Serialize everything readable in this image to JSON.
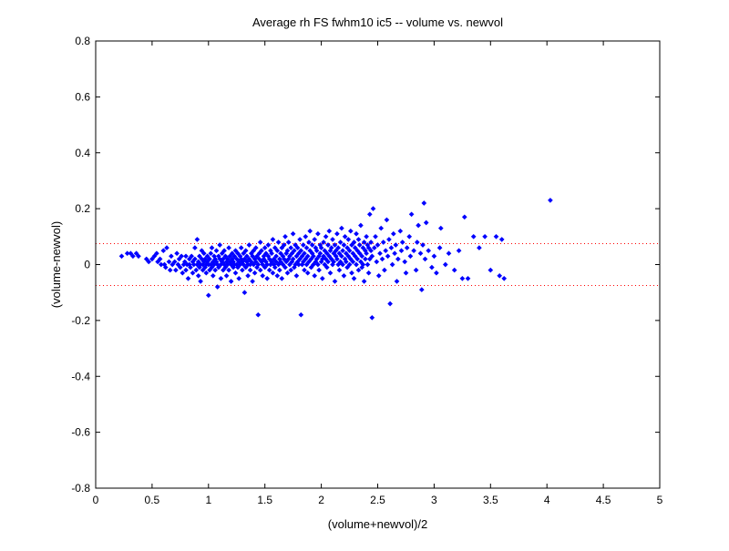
{
  "chart_data": {
    "type": "scatter",
    "title": "Average rh FS fwhm10 ic5 -- volume vs. newvol",
    "xlabel": "(volume+newvol)/2",
    "ylabel": "(volume-newvol)",
    "xlim": [
      0,
      5
    ],
    "ylim": [
      -0.8,
      0.8
    ],
    "x_ticks": [
      "0",
      "0.5",
      "1",
      "1.5",
      "2",
      "2.5",
      "3",
      "3.5",
      "4",
      "4.5",
      "5"
    ],
    "y_ticks": [
      "-0.8",
      "-0.6",
      "-0.4",
      "-0.2",
      "0",
      "0.2",
      "0.4",
      "0.6",
      "0.8"
    ],
    "grid": false,
    "legend": "none",
    "series_color": "#0000ff",
    "reference_line_color": "#ff0000",
    "reference_lines_y": [
      0.075,
      -0.075
    ],
    "points": [
      [
        0.23,
        0.03
      ],
      [
        0.28,
        0.04
      ],
      [
        0.31,
        0.04
      ],
      [
        0.33,
        0.03
      ],
      [
        0.36,
        0.04
      ],
      [
        0.38,
        0.03
      ],
      [
        0.45,
        0.02
      ],
      [
        0.47,
        0.01
      ],
      [
        0.5,
        0.02
      ],
      [
        0.52,
        0.03
      ],
      [
        0.54,
        0.04
      ],
      [
        0.55,
        0.01
      ],
      [
        0.57,
        0.02
      ],
      [
        0.58,
        0.0
      ],
      [
        0.6,
        0.05
      ],
      [
        0.61,
        0.0
      ],
      [
        0.62,
        -0.01
      ],
      [
        0.63,
        0.06
      ],
      [
        0.65,
        0.01
      ],
      [
        0.66,
        -0.02
      ],
      [
        0.67,
        0.03
      ],
      [
        0.68,
        0.0
      ],
      [
        0.7,
        0.01
      ],
      [
        0.71,
        -0.02
      ],
      [
        0.72,
        0.04
      ],
      [
        0.73,
        0.0
      ],
      [
        0.74,
        0.02
      ],
      [
        0.75,
        -0.01
      ],
      [
        0.76,
        0.03
      ],
      [
        0.77,
        -0.03
      ],
      [
        0.78,
        0.0
      ],
      [
        0.79,
        0.01
      ],
      [
        0.8,
        0.03
      ],
      [
        0.8,
        -0.02
      ],
      [
        0.81,
        0.0
      ],
      [
        0.82,
        -0.05
      ],
      [
        0.83,
        0.02
      ],
      [
        0.83,
        0.0
      ],
      [
        0.84,
        -0.01
      ],
      [
        0.85,
        0.03
      ],
      [
        0.86,
        0.01
      ],
      [
        0.86,
        -0.03
      ],
      [
        0.87,
        0.0
      ],
      [
        0.88,
        0.06
      ],
      [
        0.88,
        0.02
      ],
      [
        0.89,
        -0.02
      ],
      [
        0.9,
        0.0
      ],
      [
        0.9,
        0.09
      ],
      [
        0.91,
        0.01
      ],
      [
        0.91,
        -0.04
      ],
      [
        0.92,
        0.03
      ],
      [
        0.92,
        -0.01
      ],
      [
        0.93,
        0.0
      ],
      [
        0.93,
        -0.06
      ],
      [
        0.94,
        0.02
      ],
      [
        0.94,
        0.05
      ],
      [
        0.95,
        0.0
      ],
      [
        0.95,
        -0.02
      ],
      [
        0.96,
        0.01
      ],
      [
        0.96,
        0.04
      ],
      [
        0.97,
        -0.01
      ],
      [
        0.97,
        0.02
      ],
      [
        0.98,
        0.0
      ],
      [
        0.98,
        -0.03
      ],
      [
        0.99,
        0.03
      ],
      [
        0.99,
        0.01
      ],
      [
        1.0,
        0.0
      ],
      [
        1.0,
        -0.11
      ],
      [
        1.01,
        0.02
      ],
      [
        1.01,
        -0.02
      ],
      [
        1.02,
        0.04
      ],
      [
        1.02,
        0.0
      ],
      [
        1.03,
        -0.01
      ],
      [
        1.03,
        0.06
      ],
      [
        1.04,
        0.01
      ],
      [
        1.04,
        -0.04
      ],
      [
        1.05,
        0.03
      ],
      [
        1.05,
        0.0
      ],
      [
        1.06,
        0.02
      ],
      [
        1.06,
        -0.02
      ],
      [
        1.07,
        0.05
      ],
      [
        1.07,
        0.01
      ],
      [
        1.08,
        -0.08
      ],
      [
        1.08,
        0.0
      ],
      [
        1.09,
        0.03
      ],
      [
        1.09,
        -0.01
      ],
      [
        1.1,
        0.02
      ],
      [
        1.1,
        0.07
      ],
      [
        1.11,
        0.0
      ],
      [
        1.11,
        -0.05
      ],
      [
        1.12,
        0.01
      ],
      [
        1.12,
        0.04
      ],
      [
        1.13,
        -0.02
      ],
      [
        1.13,
        0.02
      ],
      [
        1.14,
        0.0
      ],
      [
        1.14,
        0.05
      ],
      [
        1.15,
        0.03
      ],
      [
        1.15,
        -0.01
      ],
      [
        1.16,
        0.01
      ],
      [
        1.16,
        -0.04
      ],
      [
        1.17,
        0.02
      ],
      [
        1.17,
        0.0
      ],
      [
        1.18,
        0.06
      ],
      [
        1.18,
        -0.02
      ],
      [
        1.19,
        0.01
      ],
      [
        1.19,
        0.03
      ],
      [
        1.2,
        0.0
      ],
      [
        1.2,
        -0.06
      ],
      [
        1.21,
        0.02
      ],
      [
        1.21,
        0.04
      ],
      [
        1.22,
        -0.01
      ],
      [
        1.22,
        0.01
      ],
      [
        1.23,
        0.03
      ],
      [
        1.23,
        0.0
      ],
      [
        1.24,
        0.05
      ],
      [
        1.24,
        -0.03
      ],
      [
        1.25,
        0.02
      ],
      [
        1.25,
        0.0
      ],
      [
        1.26,
        -0.01
      ],
      [
        1.26,
        0.04
      ],
      [
        1.27,
        0.01
      ],
      [
        1.27,
        -0.05
      ],
      [
        1.28,
        0.03
      ],
      [
        1.28,
        0.0
      ],
      [
        1.29,
        0.02
      ],
      [
        1.29,
        0.06
      ],
      [
        1.3,
        -0.02
      ],
      [
        1.3,
        0.01
      ],
      [
        1.31,
        0.04
      ],
      [
        1.31,
        0.0
      ],
      [
        1.32,
        -0.1
      ],
      [
        1.32,
        0.02
      ],
      [
        1.33,
        0.05
      ],
      [
        1.33,
        -0.01
      ],
      [
        1.34,
        0.01
      ],
      [
        1.34,
        0.03
      ],
      [
        1.35,
        0.0
      ],
      [
        1.35,
        -0.04
      ],
      [
        1.36,
        0.02
      ],
      [
        1.36,
        0.07
      ],
      [
        1.37,
        0.0
      ],
      [
        1.37,
        -0.02
      ],
      [
        1.38,
        0.04
      ],
      [
        1.38,
        0.01
      ],
      [
        1.39,
        -0.06
      ],
      [
        1.39,
        0.03
      ],
      [
        1.4,
        0.0
      ],
      [
        1.4,
        0.05
      ],
      [
        1.41,
        0.02
      ],
      [
        1.41,
        -0.03
      ],
      [
        1.42,
        0.01
      ],
      [
        1.42,
        0.06
      ],
      [
        1.43,
        -0.01
      ],
      [
        1.43,
        0.03
      ],
      [
        1.44,
        0.0
      ],
      [
        1.44,
        -0.18
      ],
      [
        1.45,
        0.04
      ],
      [
        1.45,
        0.02
      ],
      [
        1.46,
        -0.02
      ],
      [
        1.46,
        0.08
      ],
      [
        1.47,
        0.01
      ],
      [
        1.47,
        0.05
      ],
      [
        1.48,
        0.0
      ],
      [
        1.48,
        -0.04
      ],
      [
        1.49,
        0.03
      ],
      [
        1.49,
        0.02
      ],
      [
        1.5,
        0.06
      ],
      [
        1.5,
        -0.01
      ],
      [
        1.51,
        0.01
      ],
      [
        1.51,
        0.04
      ],
      [
        1.52,
        0.0
      ],
      [
        1.52,
        -0.05
      ],
      [
        1.53,
        0.03
      ],
      [
        1.53,
        0.07
      ],
      [
        1.54,
        0.02
      ],
      [
        1.54,
        -0.02
      ],
      [
        1.55,
        0.05
      ],
      [
        1.55,
        0.0
      ],
      [
        1.56,
        0.01
      ],
      [
        1.56,
        0.04
      ],
      [
        1.57,
        -0.03
      ],
      [
        1.57,
        0.09
      ],
      [
        1.58,
        0.02
      ],
      [
        1.58,
        0.0
      ],
      [
        1.59,
        0.06
      ],
      [
        1.59,
        -0.01
      ],
      [
        1.6,
        0.03
      ],
      [
        1.6,
        0.01
      ],
      [
        1.61,
        0.05
      ],
      [
        1.61,
        -0.04
      ],
      [
        1.62,
        0.0
      ],
      [
        1.62,
        0.08
      ],
      [
        1.63,
        0.02
      ],
      [
        1.63,
        -0.02
      ],
      [
        1.64,
        0.04
      ],
      [
        1.64,
        0.01
      ],
      [
        1.65,
        0.06
      ],
      [
        1.65,
        -0.05
      ],
      [
        1.66,
        0.03
      ],
      [
        1.66,
        0.0
      ],
      [
        1.67,
        0.07
      ],
      [
        1.67,
        0.02
      ],
      [
        1.68,
        -0.01
      ],
      [
        1.68,
        0.1
      ],
      [
        1.69,
        0.04
      ],
      [
        1.69,
        0.01
      ],
      [
        1.7,
        0.05
      ],
      [
        1.7,
        -0.03
      ],
      [
        1.71,
        0.02
      ],
      [
        1.71,
        0.08
      ],
      [
        1.72,
        0.0
      ],
      [
        1.72,
        0.03
      ],
      [
        1.73,
        0.06
      ],
      [
        1.73,
        -0.02
      ],
      [
        1.74,
        0.01
      ],
      [
        1.74,
        0.04
      ],
      [
        1.75,
        0.11
      ],
      [
        1.75,
        0.02
      ],
      [
        1.76,
        -0.01
      ],
      [
        1.76,
        0.05
      ],
      [
        1.77,
        0.0
      ],
      [
        1.77,
        0.07
      ],
      [
        1.78,
        0.03
      ],
      [
        1.78,
        -0.04
      ],
      [
        1.79,
        0.01
      ],
      [
        1.79,
        0.06
      ],
      [
        1.8,
        0.04
      ],
      [
        1.8,
        0.0
      ],
      [
        1.81,
        0.09
      ],
      [
        1.81,
        0.02
      ],
      [
        1.82,
        -0.18
      ],
      [
        1.82,
        0.05
      ],
      [
        1.83,
        0.03
      ],
      [
        1.83,
        0.0
      ],
      [
        1.84,
        0.07
      ],
      [
        1.84,
        0.01
      ],
      [
        1.85,
        -0.02
      ],
      [
        1.85,
        0.04
      ],
      [
        1.86,
        0.1
      ],
      [
        1.86,
        0.02
      ],
      [
        1.87,
        0.06
      ],
      [
        1.87,
        0.0
      ],
      [
        1.88,
        0.03
      ],
      [
        1.88,
        -0.03
      ],
      [
        1.89,
        0.08
      ],
      [
        1.89,
        0.01
      ],
      [
        1.9,
        0.05
      ],
      [
        1.9,
        0.12
      ],
      [
        1.91,
        0.02
      ],
      [
        1.91,
        -0.01
      ],
      [
        1.92,
        0.04
      ],
      [
        1.92,
        0.07
      ],
      [
        1.93,
        0.0
      ],
      [
        1.93,
        0.03
      ],
      [
        1.94,
        0.09
      ],
      [
        1.94,
        -0.04
      ],
      [
        1.95,
        0.06
      ],
      [
        1.95,
        0.01
      ],
      [
        1.96,
        0.02
      ],
      [
        1.96,
        0.05
      ],
      [
        1.97,
        0.11
      ],
      [
        1.97,
        0.0
      ],
      [
        1.98,
        0.03
      ],
      [
        1.98,
        -0.02
      ],
      [
        1.99,
        0.07
      ],
      [
        1.99,
        0.04
      ],
      [
        2.0,
        0.01
      ],
      [
        2.0,
        0.06
      ],
      [
        2.01,
        0.02
      ],
      [
        2.01,
        -0.05
      ],
      [
        2.02,
        0.08
      ],
      [
        2.02,
        0.03
      ],
      [
        2.03,
        0.0
      ],
      [
        2.03,
        0.05
      ],
      [
        2.04,
        0.1
      ],
      [
        2.04,
        0.02
      ],
      [
        2.05,
        0.04
      ],
      [
        2.05,
        -0.01
      ],
      [
        2.06,
        0.07
      ],
      [
        2.06,
        0.01
      ],
      [
        2.07,
        0.03
      ],
      [
        2.07,
        0.12
      ],
      [
        2.08,
        0.05
      ],
      [
        2.08,
        -0.03
      ],
      [
        2.09,
        0.02
      ],
      [
        2.09,
        0.06
      ],
      [
        2.1,
        0.0
      ],
      [
        2.1,
        0.09
      ],
      [
        2.11,
        0.04
      ],
      [
        2.11,
        0.01
      ],
      [
        2.12,
        0.07
      ],
      [
        2.12,
        -0.06
      ],
      [
        2.13,
        0.03
      ],
      [
        2.13,
        0.05
      ],
      [
        2.14,
        0.11
      ],
      [
        2.14,
        0.02
      ],
      [
        2.15,
        0.0
      ],
      [
        2.15,
        0.06
      ],
      [
        2.16,
        0.04
      ],
      [
        2.16,
        -0.02
      ],
      [
        2.17,
        0.08
      ],
      [
        2.17,
        0.01
      ],
      [
        2.18,
        0.03
      ],
      [
        2.18,
        0.13
      ],
      [
        2.19,
        0.05
      ],
      [
        2.19,
        0.0
      ],
      [
        2.2,
        0.07
      ],
      [
        2.2,
        -0.04
      ],
      [
        2.21,
        0.02
      ],
      [
        2.21,
        0.1
      ],
      [
        2.22,
        0.04
      ],
      [
        2.22,
        0.01
      ],
      [
        2.23,
        0.06
      ],
      [
        2.23,
        -0.01
      ],
      [
        2.24,
        0.09
      ],
      [
        2.24,
        0.03
      ],
      [
        2.25,
        0.0
      ],
      [
        2.25,
        0.05
      ],
      [
        2.26,
        0.12
      ],
      [
        2.26,
        0.02
      ],
      [
        2.27,
        -0.03
      ],
      [
        2.27,
        0.07
      ],
      [
        2.28,
        0.04
      ],
      [
        2.28,
        0.01
      ],
      [
        2.29,
        0.08
      ],
      [
        2.29,
        -0.05
      ],
      [
        2.3,
        0.03
      ],
      [
        2.3,
        0.06
      ],
      [
        2.31,
        0.0
      ],
      [
        2.31,
        0.11
      ],
      [
        2.32,
        0.05
      ],
      [
        2.32,
        0.02
      ],
      [
        2.33,
        -0.02
      ],
      [
        2.33,
        0.09
      ],
      [
        2.34,
        0.04
      ],
      [
        2.34,
        0.07
      ],
      [
        2.35,
        0.01
      ],
      [
        2.35,
        0.14
      ],
      [
        2.36,
        0.03
      ],
      [
        2.36,
        -0.01
      ],
      [
        2.37,
        0.06
      ],
      [
        2.37,
        0.0
      ],
      [
        2.38,
        0.08
      ],
      [
        2.38,
        -0.06
      ],
      [
        2.39,
        0.05
      ],
      [
        2.39,
        0.02
      ],
      [
        2.4,
        0.1
      ],
      [
        2.4,
        0.04
      ],
      [
        2.41,
        0.07
      ],
      [
        2.41,
        0.0
      ],
      [
        2.42,
        -0.03
      ],
      [
        2.42,
        0.06
      ],
      [
        2.43,
        0.18
      ],
      [
        2.43,
        0.02
      ],
      [
        2.44,
        0.05
      ],
      [
        2.44,
        0.08
      ],
      [
        2.45,
        -0.19
      ],
      [
        2.45,
        0.03
      ],
      [
        2.46,
        0.2
      ],
      [
        2.47,
        0.06
      ],
      [
        2.48,
        0.1
      ],
      [
        2.49,
        0.01
      ],
      [
        2.5,
        0.07
      ],
      [
        2.51,
        -0.04
      ],
      [
        2.52,
        0.04
      ],
      [
        2.53,
        0.13
      ],
      [
        2.54,
        0.02
      ],
      [
        2.55,
        0.08
      ],
      [
        2.56,
        -0.02
      ],
      [
        2.57,
        0.05
      ],
      [
        2.58,
        0.16
      ],
      [
        2.59,
        0.03
      ],
      [
        2.6,
        0.09
      ],
      [
        2.61,
        -0.14
      ],
      [
        2.62,
        0.06
      ],
      [
        2.63,
        0.0
      ],
      [
        2.64,
        0.11
      ],
      [
        2.65,
        0.04
      ],
      [
        2.66,
        0.07
      ],
      [
        2.67,
        -0.06
      ],
      [
        2.68,
        0.02
      ],
      [
        2.7,
        0.12
      ],
      [
        2.71,
        0.05
      ],
      [
        2.72,
        0.08
      ],
      [
        2.74,
        0.01
      ],
      [
        2.75,
        -0.03
      ],
      [
        2.76,
        0.06
      ],
      [
        2.78,
        0.1
      ],
      [
        2.79,
        0.03
      ],
      [
        2.8,
        0.18
      ],
      [
        2.82,
        0.05
      ],
      [
        2.84,
        -0.02
      ],
      [
        2.85,
        0.08
      ],
      [
        2.86,
        0.14
      ],
      [
        2.88,
        0.04
      ],
      [
        2.89,
        -0.09
      ],
      [
        2.9,
        0.07
      ],
      [
        2.91,
        0.22
      ],
      [
        2.92,
        0.02
      ],
      [
        2.93,
        0.15
      ],
      [
        2.95,
        0.05
      ],
      [
        2.98,
        -0.01
      ],
      [
        3.0,
        0.03
      ],
      [
        3.02,
        -0.03
      ],
      [
        3.05,
        0.06
      ],
      [
        3.06,
        0.13
      ],
      [
        3.1,
        0.0
      ],
      [
        3.13,
        0.04
      ],
      [
        3.18,
        -0.02
      ],
      [
        3.22,
        0.05
      ],
      [
        3.25,
        -0.05
      ],
      [
        3.27,
        0.17
      ],
      [
        3.3,
        -0.05
      ],
      [
        3.35,
        0.1
      ],
      [
        3.4,
        0.06
      ],
      [
        3.45,
        0.1
      ],
      [
        3.5,
        -0.02
      ],
      [
        3.55,
        0.1
      ],
      [
        3.58,
        -0.04
      ],
      [
        3.6,
        0.09
      ],
      [
        3.62,
        -0.05
      ],
      [
        4.03,
        0.23
      ]
    ]
  }
}
